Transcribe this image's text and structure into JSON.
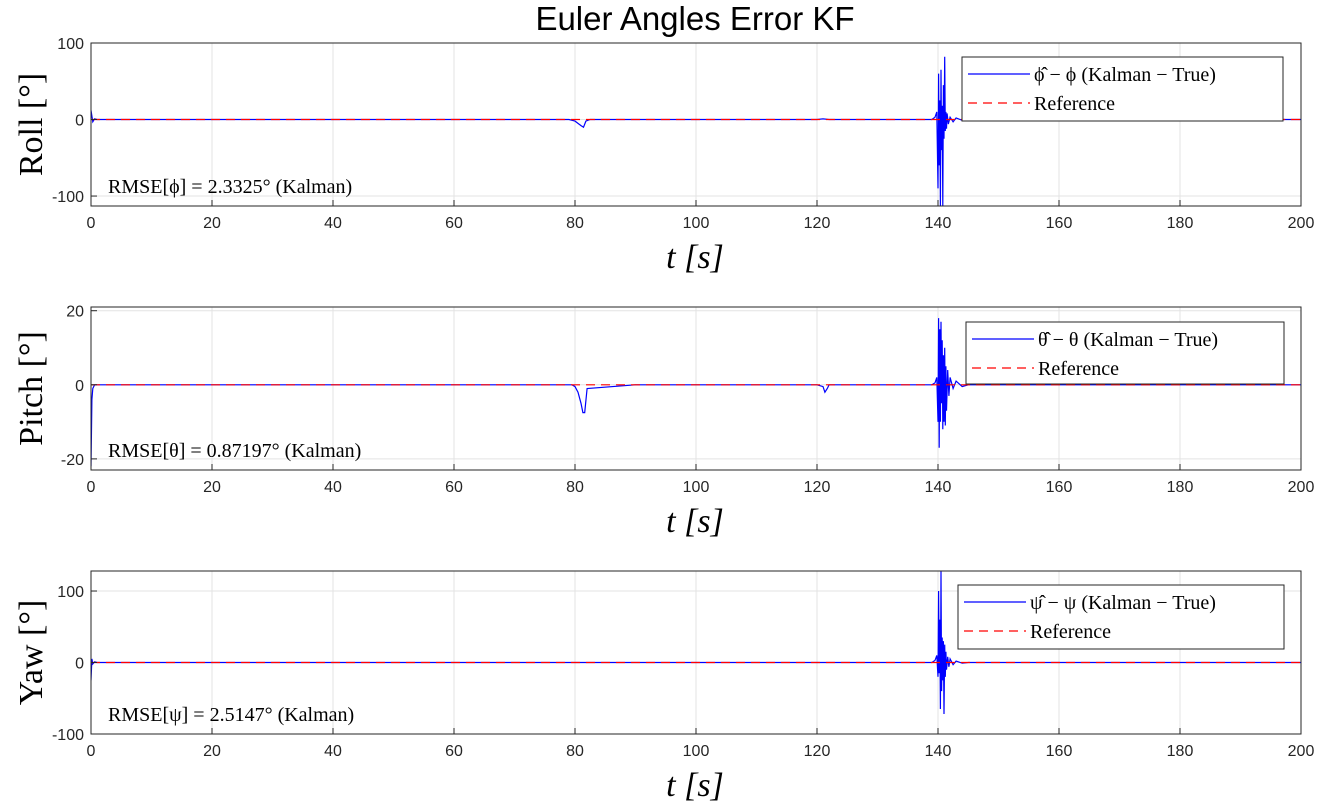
{
  "figure_title": "Euler Angles Error KF",
  "chart_data": [
    {
      "type": "line",
      "ylabel": "Roll [°]",
      "xlabel": "t [s]",
      "xlim": [
        0,
        200
      ],
      "ylim": [
        -113,
        100
      ],
      "xticks": [
        "0",
        "20",
        "40",
        "60",
        "80",
        "100",
        "120",
        "140",
        "160",
        "180",
        "200"
      ],
      "yticks": [
        {
          "value": 100,
          "label": "100"
        },
        {
          "value": 0,
          "label": "0"
        },
        {
          "value": -100,
          "label": "-100"
        }
      ],
      "grid": true,
      "legend_position": "top-right",
      "annotation": "RMSE[ϕ] = 2.3325° (Kalman)",
      "series": [
        {
          "name": "ϕ̂ − ϕ (Kalman − True)",
          "color": "#0000ff",
          "style": "solid",
          "x": [
            0,
            0.3,
            0.6,
            1,
            5,
            10,
            20,
            30,
            40,
            50,
            60,
            70,
            79,
            80,
            80.5,
            81,
            81.4,
            81.8,
            82.5,
            90,
            100,
            110,
            120,
            121,
            122,
            130,
            139,
            139.5,
            139.8,
            140,
            140.1,
            140.2,
            140.3,
            140.4,
            140.5,
            140.6,
            140.7,
            140.8,
            140.9,
            141,
            141.1,
            141.2,
            141.3,
            141.4,
            141.5,
            141.7,
            142,
            142.5,
            143,
            144,
            145,
            150,
            160,
            170,
            180,
            190,
            200
          ],
          "y": [
            12,
            -3,
            1,
            0,
            0,
            0,
            0,
            0,
            0,
            0,
            0,
            0,
            0,
            -2,
            -5,
            -8,
            -10,
            -2,
            0,
            0,
            0,
            0,
            0,
            1,
            0,
            0,
            0,
            3,
            10,
            -90,
            60,
            -60,
            25,
            -113,
            65,
            -40,
            18,
            -113,
            45,
            -25,
            82,
            -15,
            10,
            -12,
            8,
            -6,
            3,
            -3,
            2,
            -1,
            0,
            0,
            0,
            0,
            0,
            0,
            0
          ]
        },
        {
          "name": "Reference",
          "color": "#ff0000",
          "style": "dashed",
          "x": [
            0,
            200
          ],
          "y": [
            0,
            0
          ]
        }
      ]
    },
    {
      "type": "line",
      "ylabel": "Pitch [°]",
      "xlabel": "t [s]",
      "xlim": [
        0,
        200
      ],
      "ylim": [
        -23,
        21
      ],
      "xticks": [
        "0",
        "20",
        "40",
        "60",
        "80",
        "100",
        "120",
        "140",
        "160",
        "180",
        "200"
      ],
      "yticks": [
        {
          "value": 20,
          "label": "20"
        },
        {
          "value": 0,
          "label": "0"
        },
        {
          "value": -20,
          "label": "-20"
        }
      ],
      "grid": true,
      "legend_position": "top-right",
      "annotation": "RMSE[θ] = 0.87197° (Kalman)",
      "series": [
        {
          "name": "θ̂ − θ (Kalman − True)",
          "color": "#0000ff",
          "style": "solid",
          "x": [
            0,
            0.15,
            0.3,
            0.6,
            1,
            5,
            20,
            40,
            60,
            70,
            79.5,
            80,
            80.5,
            81,
            81.3,
            81.6,
            82,
            90,
            100,
            110,
            120,
            121,
            121.3,
            121.7,
            122,
            130,
            139,
            139.5,
            139.8,
            140,
            140.1,
            140.2,
            140.3,
            140.4,
            140.5,
            140.6,
            140.7,
            140.8,
            140.9,
            141,
            141.1,
            141.2,
            141.3,
            141.4,
            141.6,
            141.8,
            142,
            142.5,
            143,
            144,
            145,
            150,
            160,
            170,
            180,
            190,
            200
          ],
          "y": [
            -22,
            -4,
            -1,
            0,
            0,
            0,
            0,
            0,
            0,
            0,
            0,
            -0.5,
            -2,
            -5,
            -7.5,
            -7.5,
            -1,
            0,
            0,
            0,
            0,
            -0.5,
            -2,
            -1,
            0,
            0,
            0,
            0.5,
            2,
            -10,
            18,
            -17,
            15,
            -10,
            17,
            -5,
            12,
            -12,
            8,
            -10,
            10,
            -11,
            5,
            -7,
            4,
            -3,
            2,
            -1,
            1,
            -0.5,
            0,
            0,
            0,
            0,
            0,
            0,
            0
          ]
        },
        {
          "name": "Reference",
          "color": "#ff0000",
          "style": "dashed",
          "x": [
            0,
            200
          ],
          "y": [
            0,
            0
          ]
        }
      ]
    },
    {
      "type": "line",
      "ylabel": "Yaw [°]",
      "xlabel": "t [s]",
      "xlim": [
        0,
        200
      ],
      "ylim": [
        -100,
        128
      ],
      "xticks": [
        "0",
        "20",
        "40",
        "60",
        "80",
        "100",
        "120",
        "140",
        "160",
        "180",
        "200"
      ],
      "yticks": [
        {
          "value": 100,
          "label": "100"
        },
        {
          "value": 0,
          "label": "0"
        },
        {
          "value": -100,
          "label": "-100"
        }
      ],
      "grid": true,
      "legend_position": "top-right",
      "annotation": "RMSE[ψ] = 2.5147° (Kalman)",
      "series": [
        {
          "name": "ψ̂ − ψ (Kalman − True)",
          "color": "#0000ff",
          "style": "solid",
          "x": [
            0,
            0.15,
            0.3,
            0.6,
            1,
            10,
            20,
            30,
            40,
            50,
            60,
            70,
            80,
            90,
            100,
            110,
            120,
            130,
            139,
            139.5,
            139.8,
            140,
            140.1,
            140.2,
            140.3,
            140.4,
            140.5,
            140.6,
            140.7,
            140.8,
            140.9,
            141,
            141.1,
            141.2,
            141.3,
            141.4,
            141.6,
            141.8,
            142,
            142.5,
            143,
            144,
            145,
            150,
            160,
            170,
            180,
            190,
            200
          ],
          "y": [
            -25,
            5,
            -2,
            1,
            0,
            0,
            0,
            0,
            0,
            0,
            0,
            0,
            0,
            0,
            0,
            0,
            0,
            0,
            0,
            3,
            10,
            -20,
            100,
            -15,
            60,
            -65,
            128,
            -40,
            35,
            -25,
            30,
            -72,
            25,
            -20,
            15,
            -10,
            8,
            -6,
            5,
            -3,
            2,
            -1,
            0,
            0,
            0,
            0,
            0,
            0,
            0
          ]
        },
        {
          "name": "Reference",
          "color": "#ff0000",
          "style": "dashed",
          "x": [
            0,
            200
          ],
          "y": [
            0,
            0
          ]
        }
      ]
    }
  ]
}
